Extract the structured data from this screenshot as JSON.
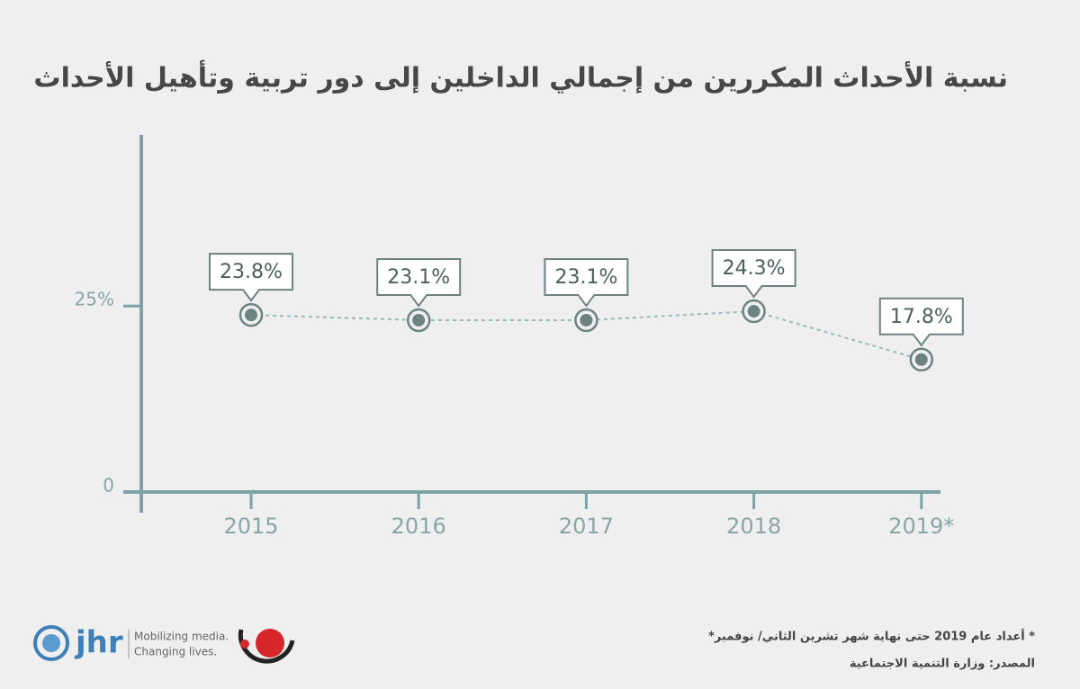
{
  "chart_data": {
    "type": "line",
    "title": "نسبة الأحداث المكررين من إجمالي الداخلين إلى دور تربية وتأهيل الأحداث",
    "categories": [
      "2015",
      "2016",
      "2017",
      "2018",
      "2019*"
    ],
    "series": [
      {
        "color": "#6d8382",
        "values": [
          23.8,
          23.1,
          23.1,
          24.3,
          17.8
        ],
        "value_labels": [
          "23.8%",
          "23.1%",
          "23.1%",
          "24.3%",
          "17.8%"
        ]
      }
    ],
    "ylim": [
      0,
      48
    ],
    "yticks": [
      0,
      {
        "value": 25,
        "label": "25%"
      }
    ],
    "footnotes": [
      "* أعداد عام 2019 حتى نهاية شهر تشرين الثاني/ نوفمبر*",
      "المصدر: وزارة التنمية الاجتماعية"
    ]
  },
  "logos": {
    "jhr": "jhr",
    "tagline": [
      "Mobilizing media.",
      "Changing lives."
    ]
  }
}
